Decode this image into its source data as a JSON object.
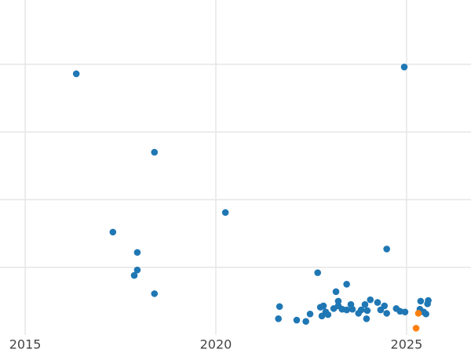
{
  "chart_data": {
    "type": "scatter",
    "xlim": [
      2014.34,
      2026.69
    ],
    "xticks": [
      2015,
      2020,
      2025
    ],
    "ylim": [
      0,
      4.95
    ],
    "yticks": [
      1,
      2,
      3,
      4
    ],
    "grid": true,
    "series": [
      {
        "color": "#1f77b4",
        "x": [
          2016.34,
          2024.94,
          2018.39,
          2020.25,
          2017.3,
          2017.94,
          2017.94,
          2017.86,
          2018.39,
          2024.48,
          2022.67,
          2023.43,
          2023.15,
          2021.67,
          2021.64,
          2022.12,
          2022.36,
          2022.47,
          2022.74,
          2022.82,
          2022.78,
          2022.88,
          2022.94,
          2023.09,
          2023.21,
          2023.21,
          2023.31,
          2023.43,
          2023.54,
          2023.58,
          2023.74,
          2023.81,
          2023.91,
          2023.97,
          2023.95,
          2024.05,
          2024.24,
          2024.32,
          2024.42,
          2024.48,
          2024.73,
          2024.83,
          2024.96,
          2025.37,
          2025.35,
          2025.45,
          2025.51,
          2025.55,
          2025.57
        ],
        "y": [
          3.86,
          3.96,
          2.7,
          1.81,
          1.52,
          1.22,
          0.96,
          0.88,
          0.61,
          1.27,
          0.92,
          0.75,
          0.64,
          0.42,
          0.24,
          0.22,
          0.2,
          0.31,
          0.41,
          0.43,
          0.28,
          0.34,
          0.3,
          0.39,
          0.5,
          0.43,
          0.38,
          0.37,
          0.45,
          0.38,
          0.32,
          0.37,
          0.45,
          0.36,
          0.24,
          0.52,
          0.48,
          0.37,
          0.43,
          0.32,
          0.39,
          0.35,
          0.34,
          0.5,
          0.38,
          0.34,
          0.31,
          0.46,
          0.51
        ]
      },
      {
        "color": "#ff7f0e",
        "x": [
          2025.31,
          2025.25
        ],
        "y": [
          0.32,
          0.1
        ]
      }
    ]
  }
}
